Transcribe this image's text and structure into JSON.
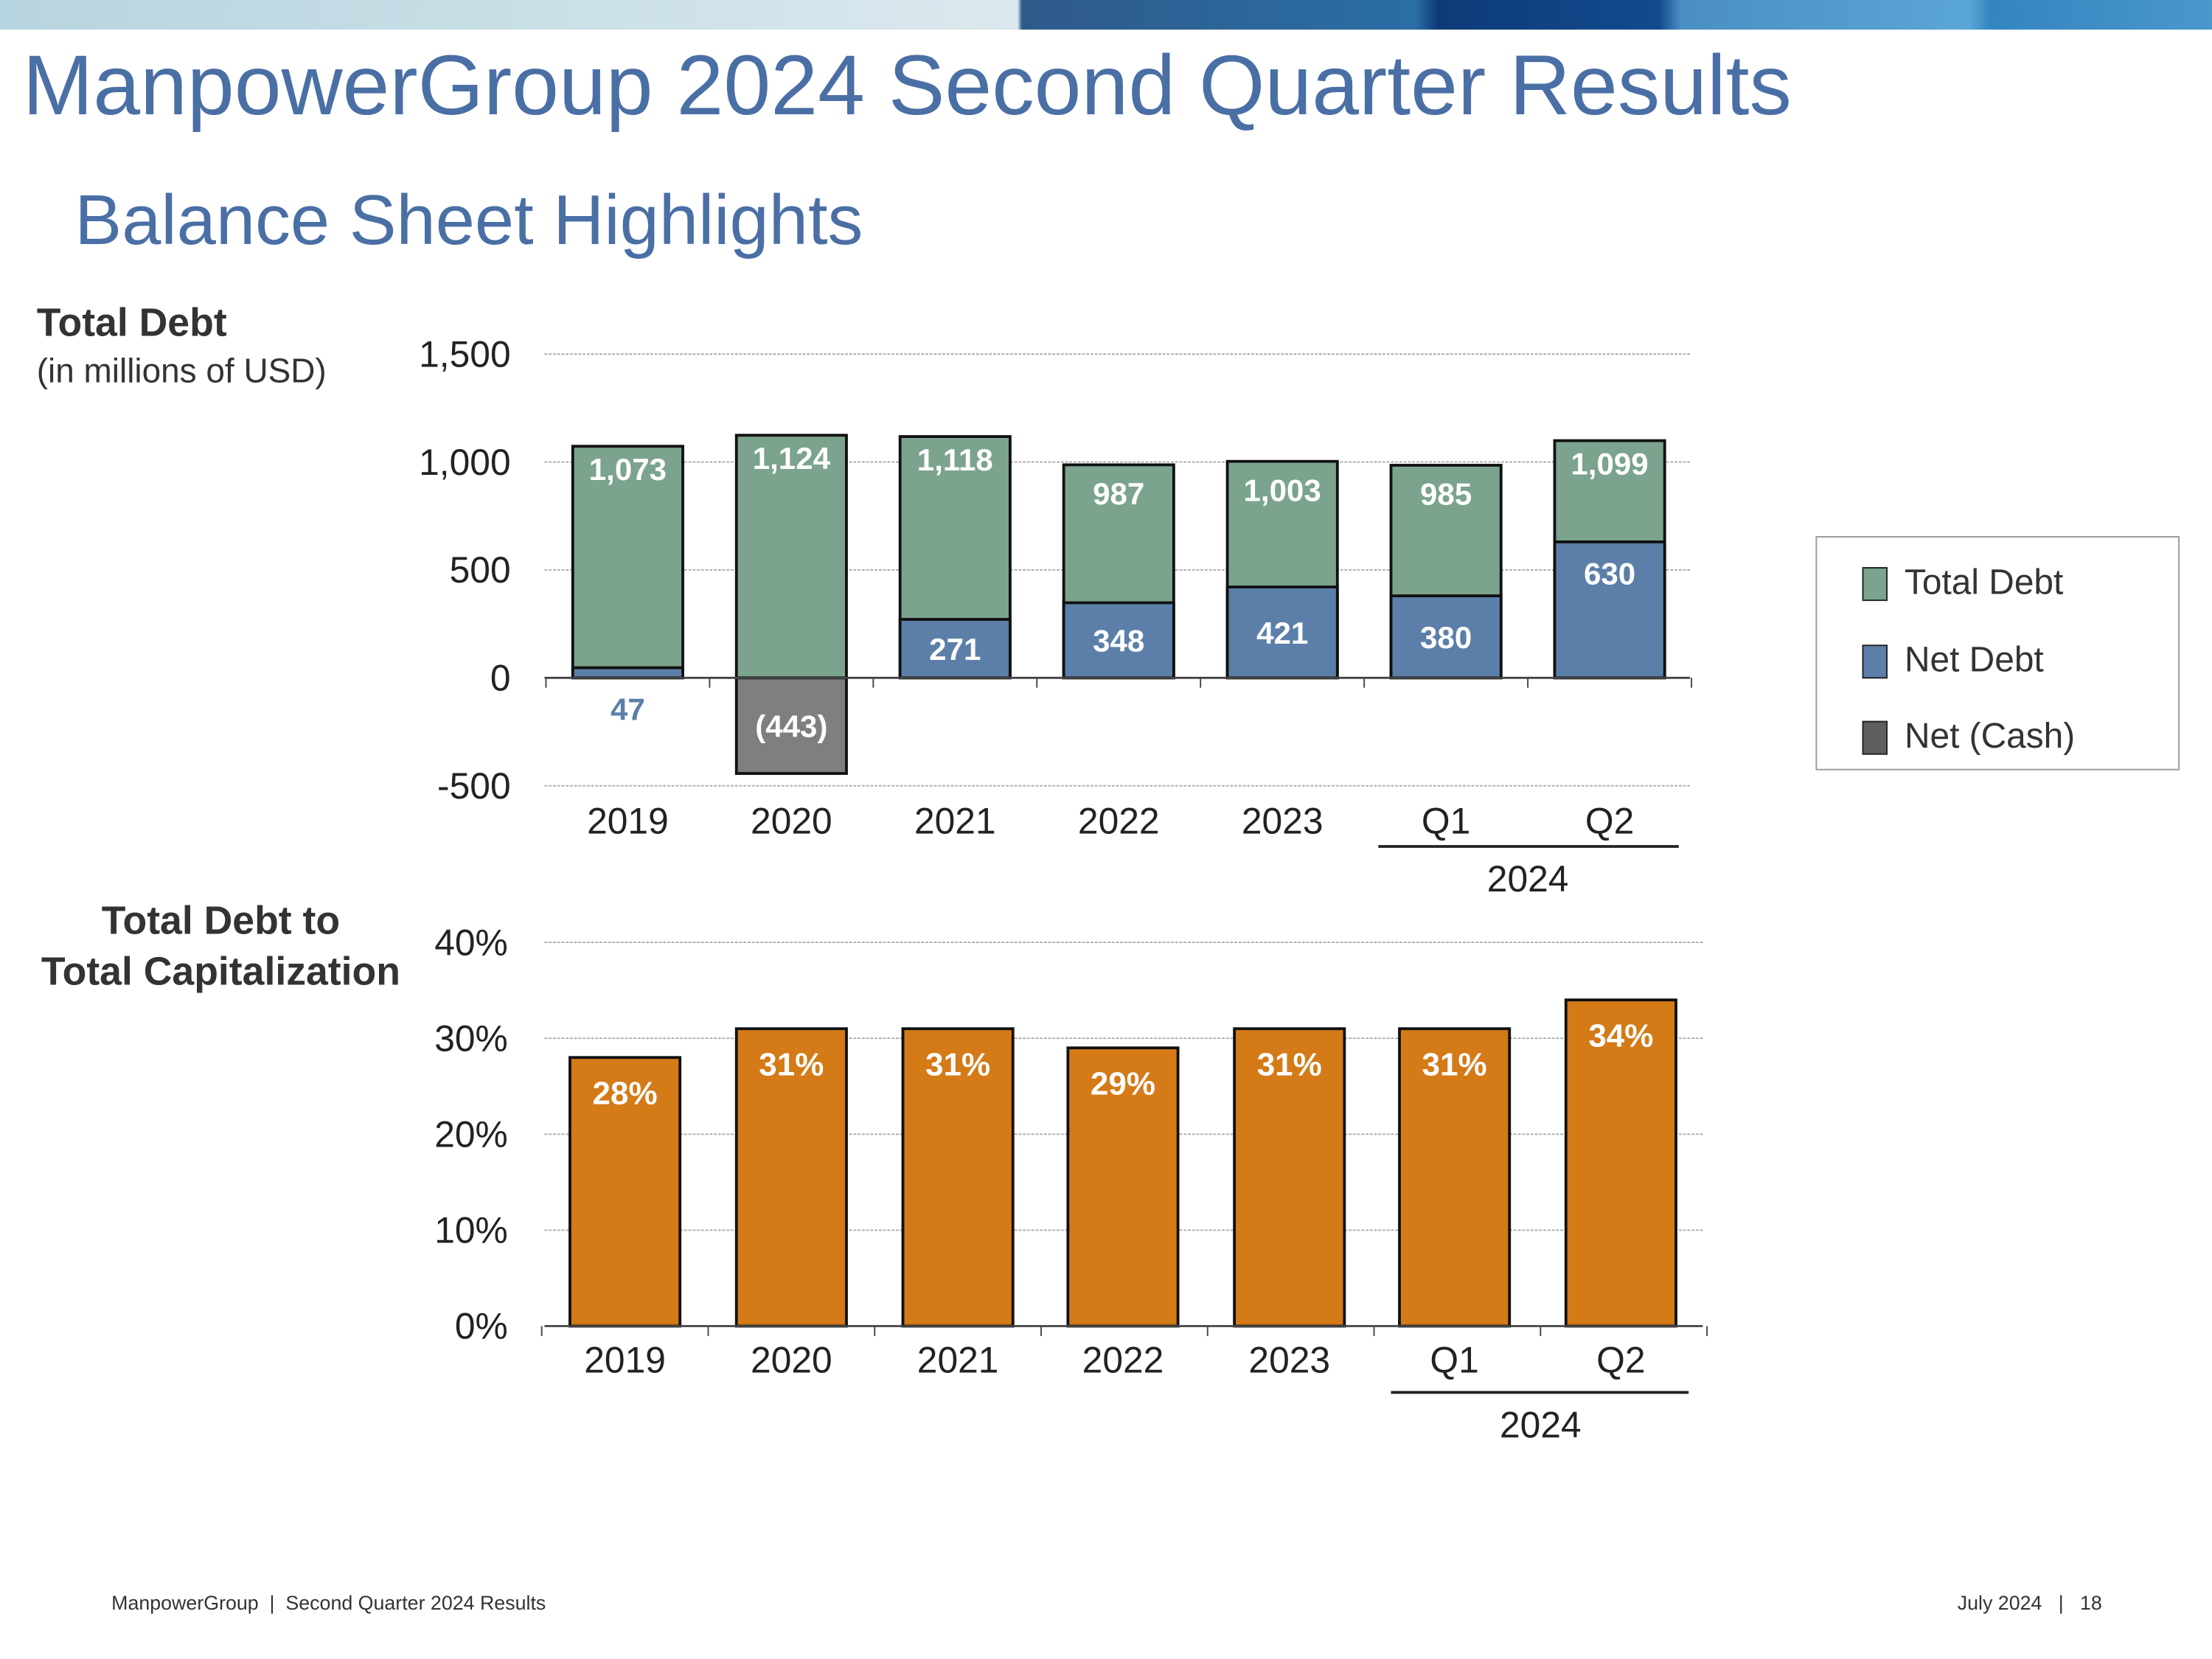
{
  "header": {
    "title": "ManpowerGroup 2024 Second Quarter Results",
    "subtitle": "Balance Sheet Highlights"
  },
  "colors": {
    "title": "#4a6fa5",
    "total_debt": "#7ba38e",
    "net_debt": "#5b7fa8",
    "net_cash": "#7f7f7f",
    "capitalization": "#d47a17"
  },
  "chart_data": [
    {
      "type": "bar",
      "stacked": "overlay",
      "title": "Total Debt",
      "subtitle": "(in millions of USD)",
      "categories": [
        "2019",
        "2020",
        "2021",
        "2022",
        "2023",
        "Q1",
        "Q2"
      ],
      "category_group": {
        "label": "2024",
        "members": [
          "Q1",
          "Q2"
        ]
      },
      "ylim": [
        -500,
        1500
      ],
      "yticks": [
        "1,500",
        "1,000",
        "500",
        "0",
        "-500"
      ],
      "ytick_values": [
        1500,
        1000,
        500,
        0,
        -500
      ],
      "grid": true,
      "legend_position": "right",
      "series": [
        {
          "name": "Total Debt",
          "values": [
            1073,
            1124,
            1118,
            987,
            1003,
            985,
            1099
          ],
          "labels": [
            "1,073",
            "1,124",
            "1,118",
            "987",
            "1,003",
            "985",
            "1,099"
          ]
        },
        {
          "name": "Net Debt",
          "values": [
            47,
            null,
            271,
            348,
            421,
            380,
            630
          ],
          "labels": [
            "47",
            "",
            "271",
            "348",
            "421",
            "380",
            "630"
          ]
        },
        {
          "name": "Net (Cash)",
          "values": [
            null,
            -443,
            null,
            null,
            null,
            null,
            null
          ],
          "labels": [
            "",
            "(443)",
            "",
            "",
            "",
            "",
            ""
          ]
        }
      ]
    },
    {
      "type": "bar",
      "title": "Total Debt to\nTotal Capitalization",
      "title_lines": [
        "Total Debt to",
        "Total Capitalization"
      ],
      "categories": [
        "2019",
        "2020",
        "2021",
        "2022",
        "2023",
        "Q1",
        "Q2"
      ],
      "category_group": {
        "label": "2024",
        "members": [
          "Q1",
          "Q2"
        ]
      },
      "ylim": [
        0,
        40
      ],
      "yticks": [
        "40%",
        "30%",
        "20%",
        "10%",
        "0%"
      ],
      "ytick_values": [
        40,
        30,
        20,
        10,
        0
      ],
      "grid": true,
      "values": [
        28,
        31,
        31,
        29,
        31,
        31,
        34
      ],
      "labels": [
        "28%",
        "31%",
        "31%",
        "29%",
        "31%",
        "31%",
        "34%"
      ]
    }
  ],
  "legend": {
    "items": [
      {
        "label": "Total Debt"
      },
      {
        "label": "Net Debt"
      },
      {
        "label": "Net (Cash)"
      }
    ]
  },
  "footer": {
    "left": "ManpowerGroup  |  Second Quarter 2024 Results",
    "right": "July 2024   |   18"
  }
}
